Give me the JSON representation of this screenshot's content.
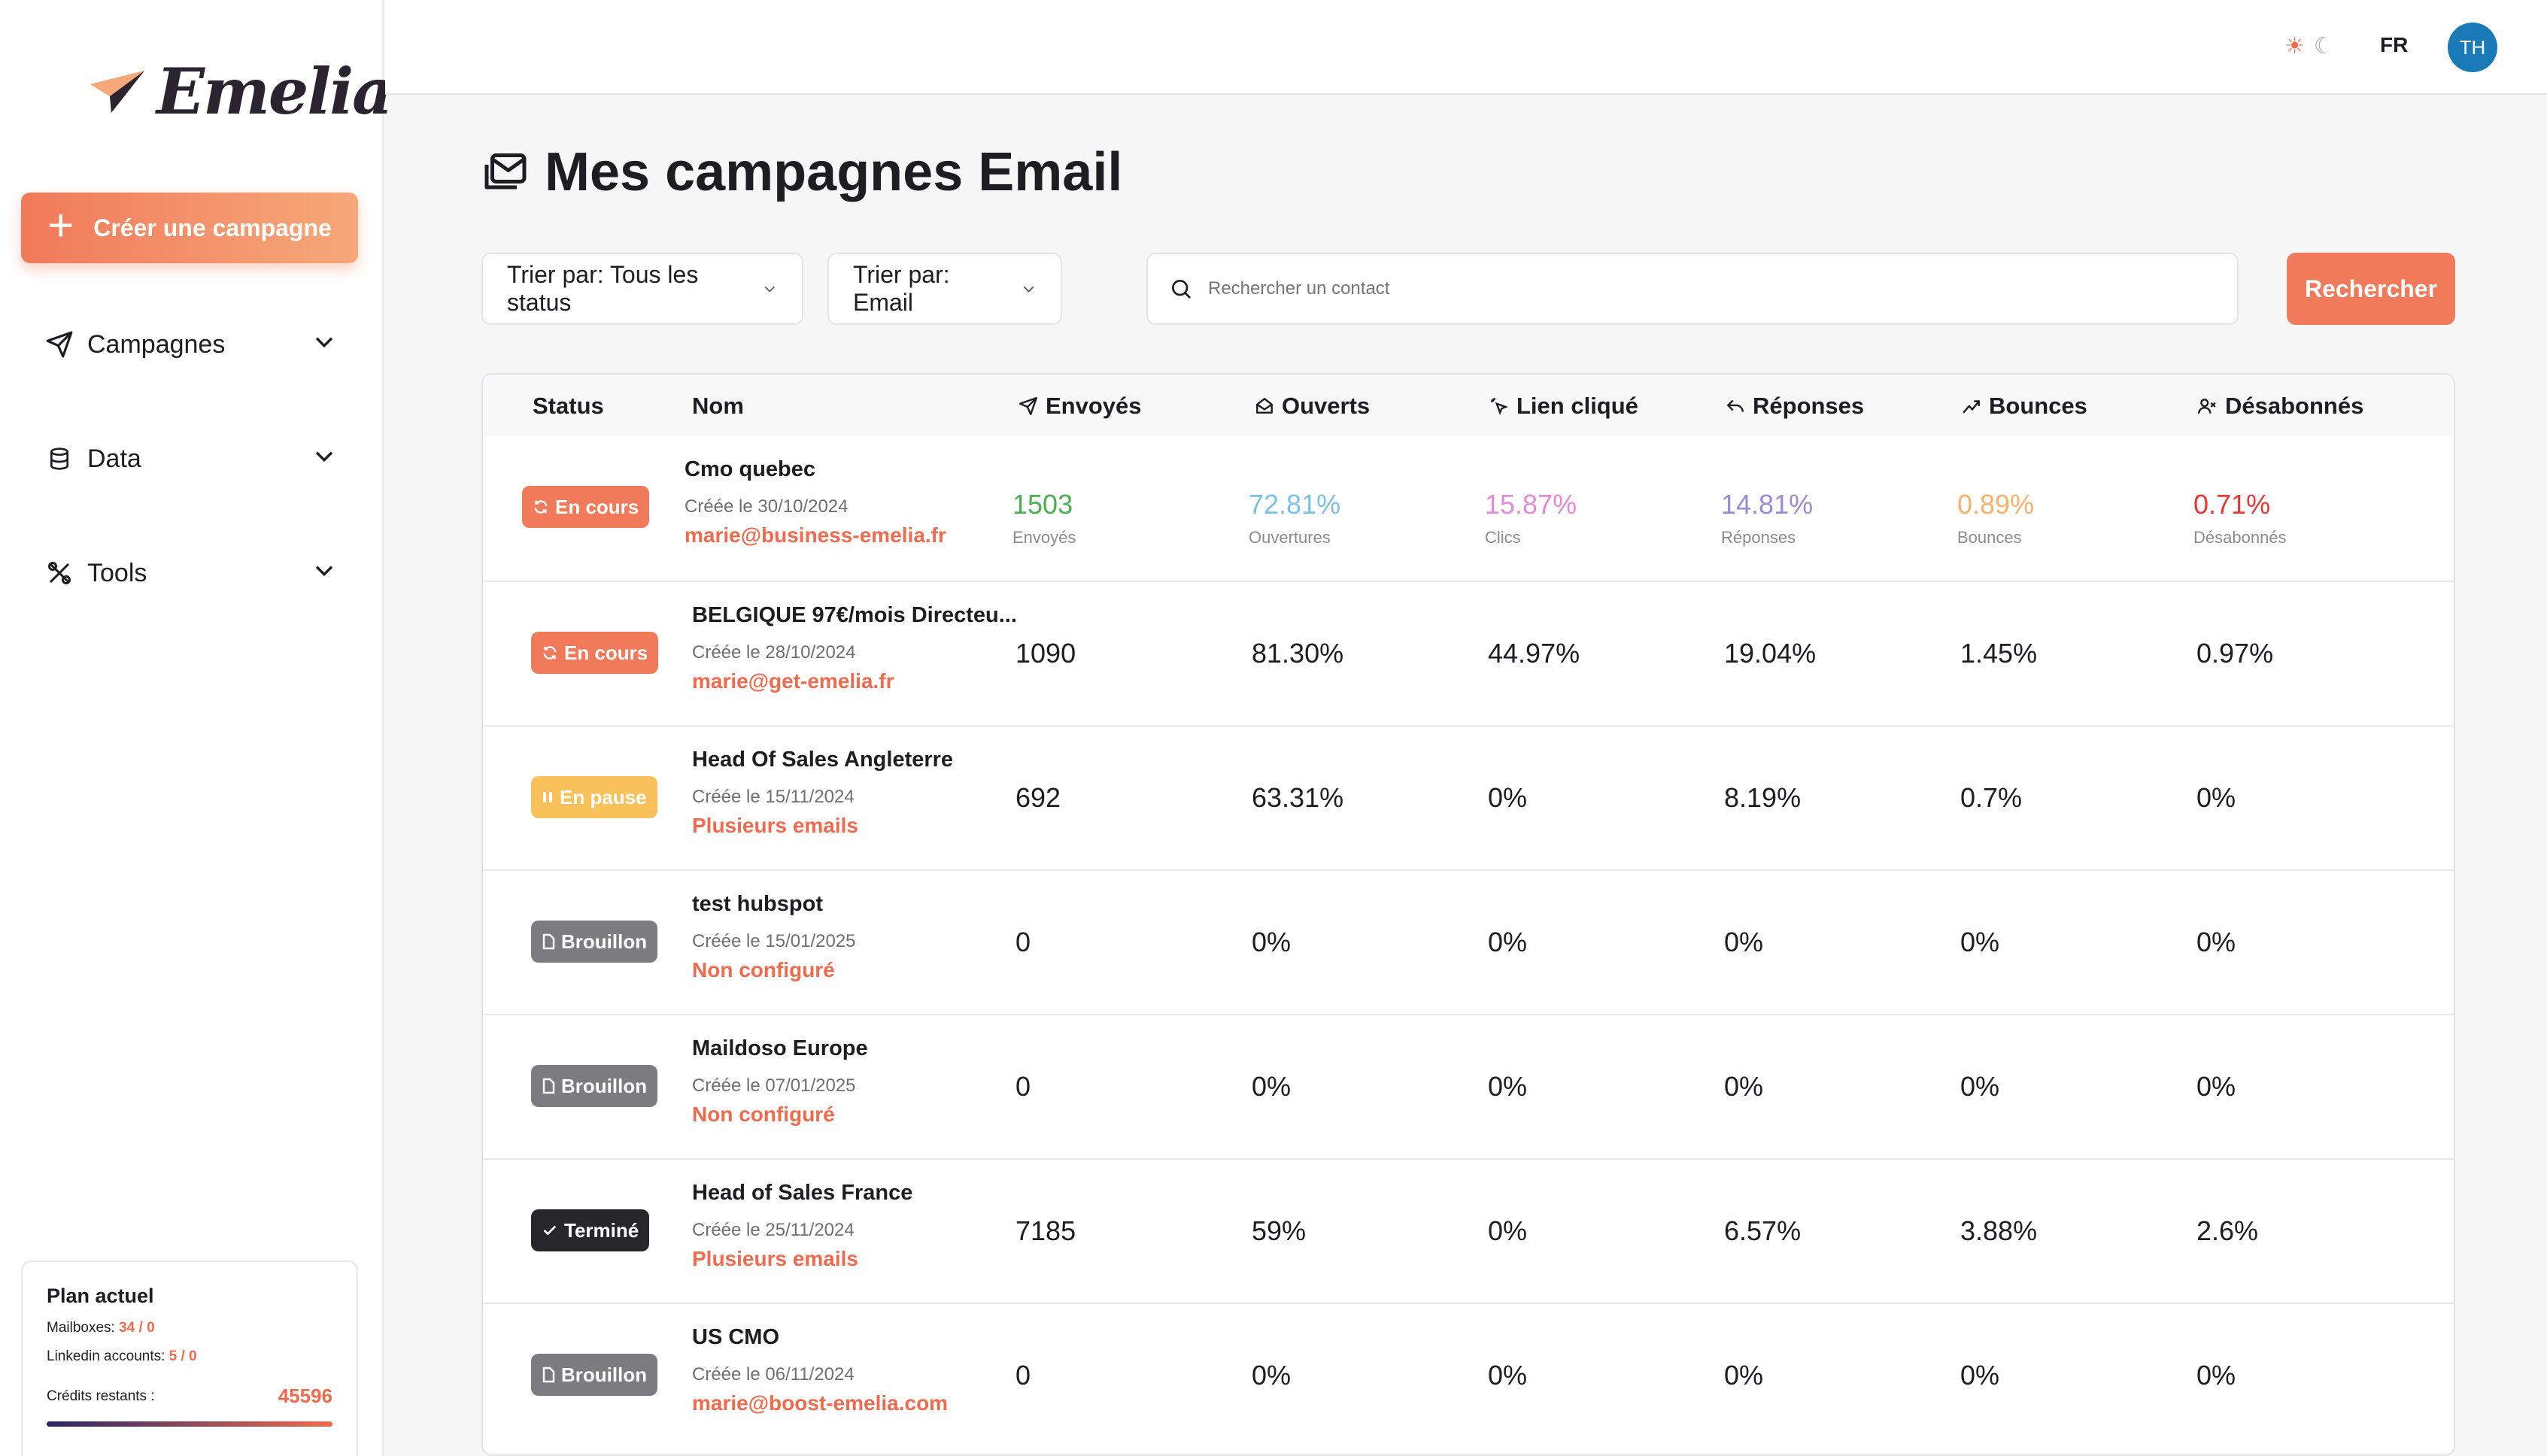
{
  "brand": {
    "name": "Emelia"
  },
  "sidebar": {
    "create_label": "Créer une campagne",
    "nav": [
      {
        "label": "Campagnes",
        "icon": "send-icon"
      },
      {
        "label": "Data",
        "icon": "database-icon"
      },
      {
        "label": "Tools",
        "icon": "tools-icon"
      }
    ],
    "plan": {
      "title": "Plan actuel",
      "mailboxes_label": "Mailboxes:",
      "mailboxes_value": "34 / 0",
      "linkedin_label": "Linkedin accounts:",
      "linkedin_value": "5 / 0",
      "credits_label": "Crédits restants :",
      "credits_value": "45596"
    }
  },
  "topbar": {
    "lang": "FR",
    "avatar_initials": "TH"
  },
  "page": {
    "title": "Mes campagnes Email",
    "filter_status": "Trier par: Tous les status",
    "filter_email": "Trier par: Email",
    "search_placeholder": "Rechercher un contact",
    "search_button": "Rechercher"
  },
  "table": {
    "headers": {
      "status": "Status",
      "name": "Nom",
      "sent": "Envoyés",
      "opened": "Ouverts",
      "clicked": "Lien cliqué",
      "replies": "Réponses",
      "bounces": "Bounces",
      "unsubscribed": "Désabonnés"
    },
    "first_row": {
      "status": "En cours",
      "name": "Cmo quebec",
      "date": "Créée le 30/10/2024",
      "email": "marie@business-emelia.fr",
      "sent": "1503",
      "sent_label": "Envoyés",
      "opened": "72.81%",
      "opened_label": "Ouvertures",
      "clicked": "15.87%",
      "clicked_label": "Clics",
      "replies": "14.81%",
      "replies_label": "Réponses",
      "bounces": "0.89%",
      "bounces_label": "Bounces",
      "unsubscribed": "0.71%",
      "unsubscribed_label": "Désabonnés"
    },
    "rows": [
      {
        "status": "En cours",
        "name": "BELGIQUE 97€/mois Directeu...",
        "date": "Créée le 28/10/2024",
        "email": "marie@get-emelia.fr",
        "sent": "1090",
        "opened": "81.30%",
        "clicked": "44.97%",
        "replies": "19.04%",
        "bounces": "1.45%",
        "unsubscribed": "0.97%"
      },
      {
        "status": "En pause",
        "name": "Head Of Sales Angleterre",
        "date": "Créée le 15/11/2024",
        "email": "Plusieurs emails",
        "sent": "692",
        "opened": "63.31%",
        "clicked": "0%",
        "replies": "8.19%",
        "bounces": "0.7%",
        "unsubscribed": "0%"
      },
      {
        "status": "Brouillon",
        "name": "test hubspot",
        "date": "Créée le 15/01/2025",
        "email": "Non configuré",
        "sent": "0",
        "opened": "0%",
        "clicked": "0%",
        "replies": "0%",
        "bounces": "0%",
        "unsubscribed": "0%"
      },
      {
        "status": "Brouillon",
        "name": "Maildoso Europe",
        "date": "Créée le 07/01/2025",
        "email": "Non configuré",
        "sent": "0",
        "opened": "0%",
        "clicked": "0%",
        "replies": "0%",
        "bounces": "0%",
        "unsubscribed": "0%"
      },
      {
        "status": "Terminé",
        "name": "Head of Sales France",
        "date": "Créée le 25/11/2024",
        "email": "Plusieurs emails",
        "sent": "7185",
        "opened": "59%",
        "clicked": "0%",
        "replies": "6.57%",
        "bounces": "3.88%",
        "unsubscribed": "2.6%"
      },
      {
        "status": "Brouillon",
        "name": "US CMO",
        "date": "Créée le 06/11/2024",
        "email": "marie@boost-emelia.com",
        "sent": "0",
        "opened": "0%",
        "clicked": "0%",
        "replies": "0%",
        "bounces": "0%",
        "unsubscribed": "0%"
      }
    ]
  },
  "colors": {
    "accent": "#f07a5a",
    "sent": "#4caf50",
    "opened": "#7cc0e8",
    "clicked": "#e38ad8",
    "replies": "#9a8ad8",
    "bounces": "#f6b26b",
    "unsubscribed": "#e53935"
  }
}
